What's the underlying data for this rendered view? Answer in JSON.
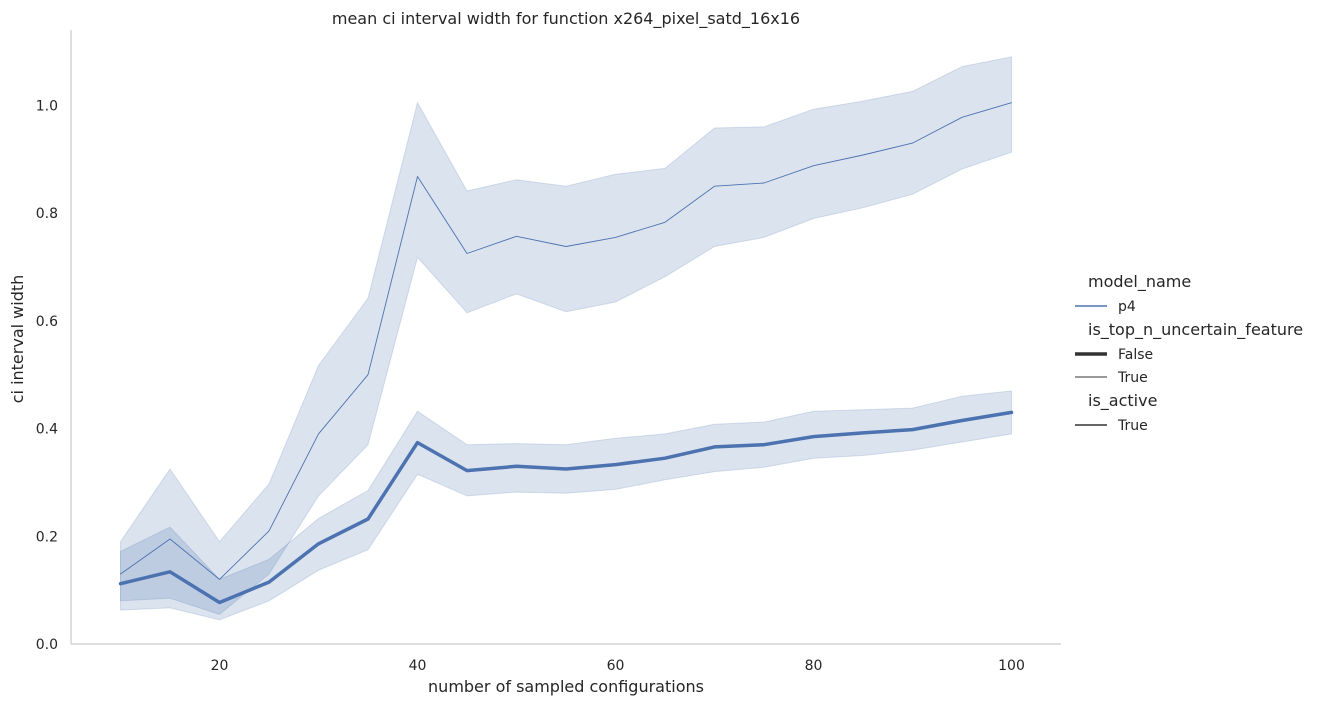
{
  "chart_data": {
    "type": "line",
    "title": "mean ci interval width for function x264_pixel_satd_16x16",
    "xlabel": "number of sampled configurations",
    "ylabel": "ci interval width",
    "xlim": [
      5,
      105
    ],
    "ylim": [
      0,
      1.14
    ],
    "xticks": [
      20,
      40,
      60,
      80,
      100
    ],
    "yticks": [
      0.0,
      0.2,
      0.4,
      0.6,
      0.8,
      1.0
    ],
    "x": [
      10,
      15,
      20,
      25,
      30,
      35,
      40,
      45,
      50,
      55,
      60,
      65,
      70,
      75,
      80,
      85,
      90,
      95,
      100
    ],
    "series": [
      {
        "name": "True",
        "model_name": "p4",
        "is_top_n_uncertain_feature": "True",
        "is_active": "True",
        "color": "#4c72b0",
        "line_width": "thin",
        "values": [
          0.13,
          0.195,
          0.12,
          0.21,
          0.39,
          0.5,
          0.868,
          0.725,
          0.757,
          0.738,
          0.755,
          0.783,
          0.85,
          0.856,
          0.888,
          0.908,
          0.93,
          0.978,
          1.005
        ],
        "ci_low": [
          0.08,
          0.085,
          0.055,
          0.13,
          0.275,
          0.37,
          0.718,
          0.615,
          0.65,
          0.617,
          0.635,
          0.682,
          0.738,
          0.755,
          0.79,
          0.81,
          0.835,
          0.882,
          0.913
        ],
        "ci_high": [
          0.19,
          0.325,
          0.19,
          0.297,
          0.517,
          0.642,
          1.005,
          0.841,
          0.862,
          0.85,
          0.872,
          0.883,
          0.958,
          0.96,
          0.993,
          1.008,
          1.026,
          1.072,
          1.09
        ]
      },
      {
        "name": "False",
        "model_name": "p4",
        "is_top_n_uncertain_feature": "False",
        "is_active": "True",
        "color": "#4c72b0",
        "line_width": "thick",
        "values": [
          0.112,
          0.134,
          0.077,
          0.115,
          0.186,
          0.232,
          0.374,
          0.322,
          0.33,
          0.325,
          0.333,
          0.345,
          0.366,
          0.37,
          0.385,
          0.392,
          0.398,
          0.415,
          0.43
        ],
        "ci_low": [
          0.063,
          0.067,
          0.045,
          0.08,
          0.137,
          0.175,
          0.315,
          0.275,
          0.282,
          0.28,
          0.287,
          0.305,
          0.32,
          0.328,
          0.345,
          0.35,
          0.36,
          0.375,
          0.39
        ],
        "ci_high": [
          0.172,
          0.217,
          0.12,
          0.157,
          0.233,
          0.285,
          0.432,
          0.37,
          0.372,
          0.37,
          0.382,
          0.39,
          0.408,
          0.412,
          0.432,
          0.435,
          0.438,
          0.46,
          0.47
        ]
      }
    ],
    "legend": {
      "placement": "right",
      "groups": [
        {
          "title": "model_name",
          "entries": [
            {
              "label": "p4",
              "style": "color"
            }
          ]
        },
        {
          "title": "is_top_n_uncertain_feature",
          "entries": [
            {
              "label": "False",
              "style": "thick"
            },
            {
              "label": "True",
              "style": "thin"
            }
          ]
        },
        {
          "title": "is_active",
          "entries": [
            {
              "label": "True",
              "style": "solid"
            }
          ]
        }
      ]
    }
  }
}
